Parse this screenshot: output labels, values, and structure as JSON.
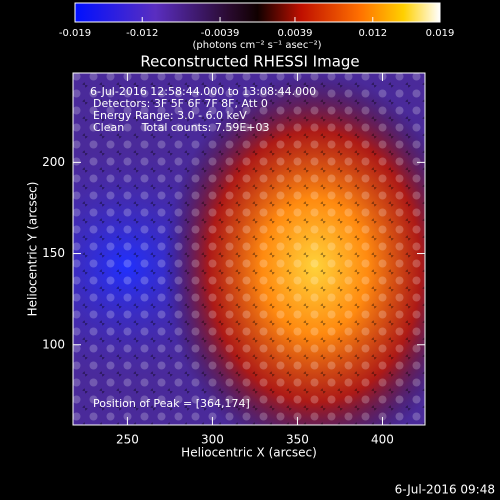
{
  "chart_data": {
    "type": "image",
    "title": "Reconstructed RHESSI Image",
    "xlabel": "Heliocentric X (arcsec)",
    "ylabel": "Heliocentric Y (arcsec)",
    "xlim": [
      218,
      425
    ],
    "ylim": [
      56,
      249
    ],
    "xticks": [
      250,
      300,
      350,
      400
    ],
    "yticks": [
      100,
      150,
      200
    ],
    "colorbar": {
      "lim": [
        -0.019,
        0.019
      ],
      "ticks": [
        -0.019,
        -0.012,
        -0.0039,
        0.0039,
        0.012,
        0.019
      ],
      "label": "(photons cm⁻² s⁻¹ asec⁻²)"
    },
    "annotations": [
      "6-Jul-2016 12:58:44.000 to 13:08:44.000",
      "Detectors: 3F 5F 6F 7F 8F, Att 0",
      "Energy Range: 3.0 - 6.0 keV",
      "Clean     Total counts: 7.59E+03"
    ],
    "peak_label": "Position of Peak = [364,174]",
    "footer": "6-Jul-2016 09:48"
  }
}
